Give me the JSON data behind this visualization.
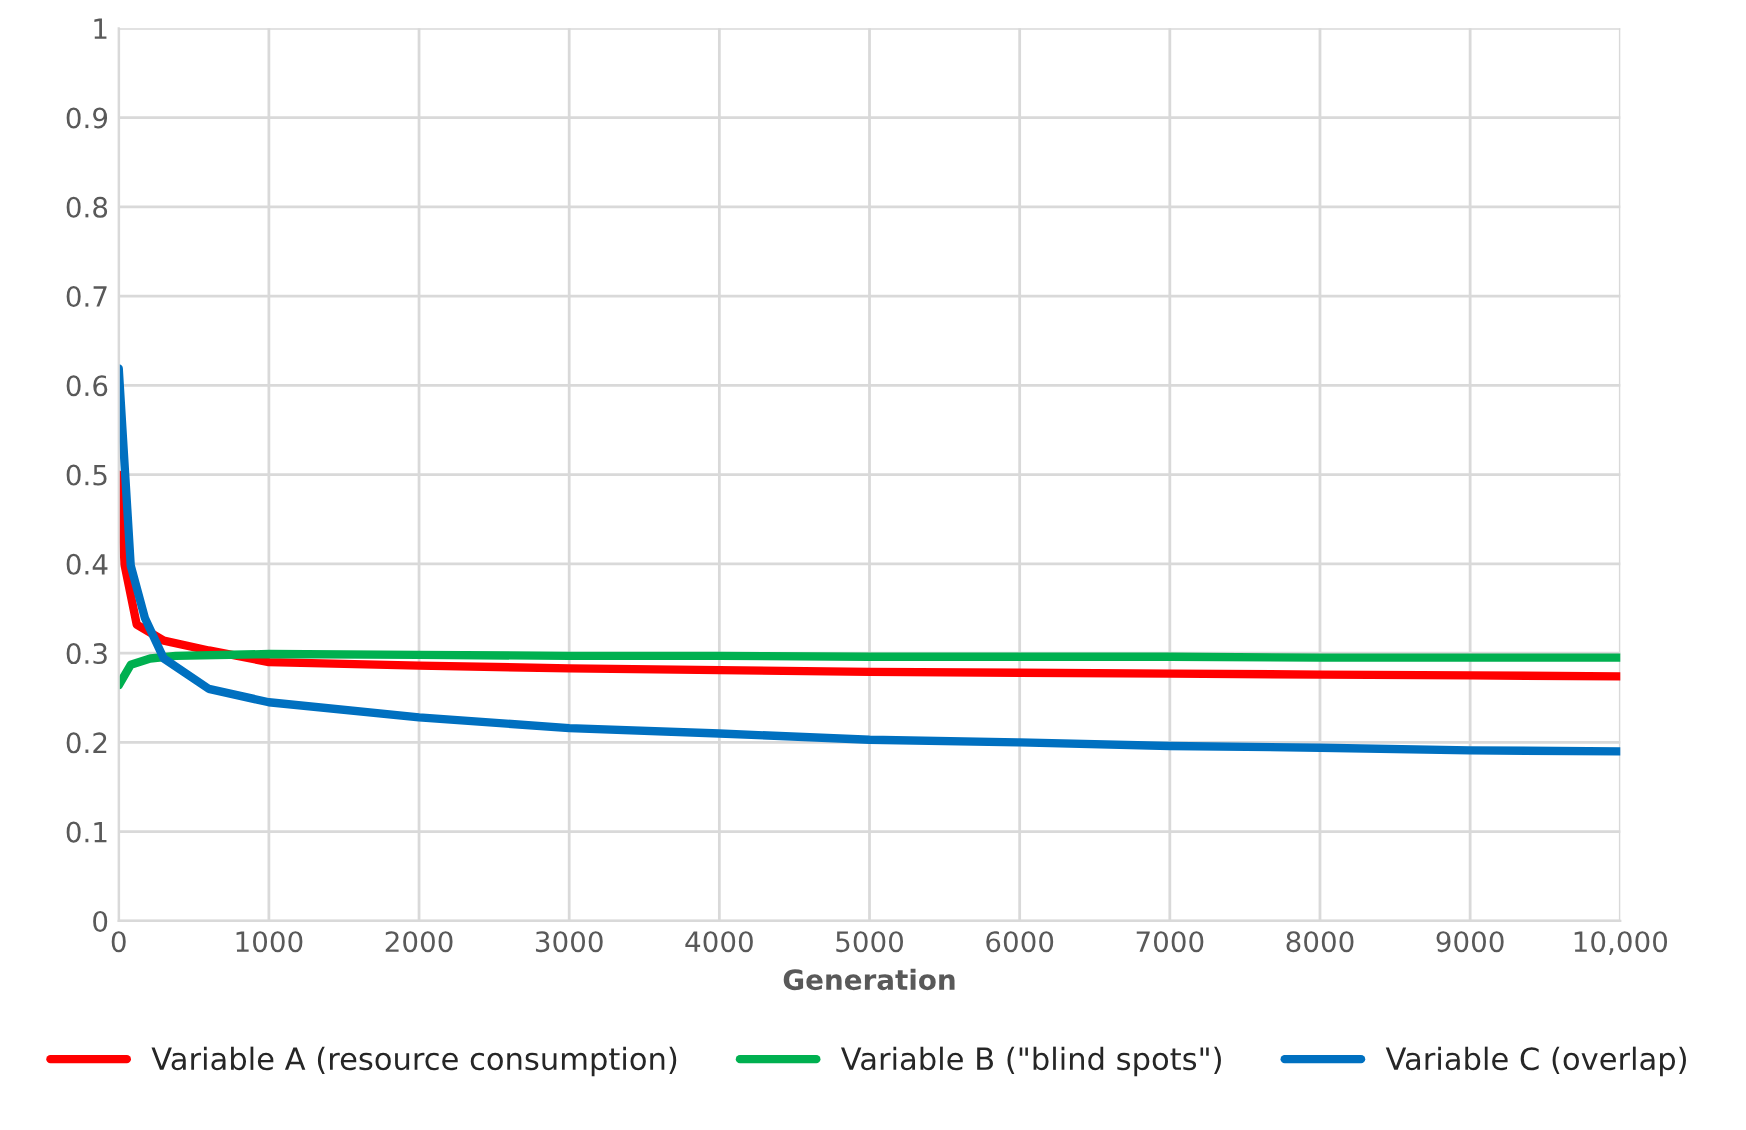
{
  "chart_data": {
    "type": "line",
    "xlabel": "Generation",
    "xlim": [
      0,
      10000
    ],
    "ylim": [
      0,
      1
    ],
    "xticks": [
      0,
      1000,
      2000,
      3000,
      4000,
      5000,
      6000,
      7000,
      8000,
      9000,
      {
        "value": 10000,
        "label": "10,000"
      }
    ],
    "yticks": [
      0,
      0.1,
      0.2,
      0.3,
      0.4,
      0.5,
      0.6,
      0.7,
      0.8,
      0.9,
      1
    ],
    "grid": true,
    "legend": "bottom",
    "marker": "none",
    "line_style": "solid",
    "series": [
      {
        "name": "Variable A (resource consumption)",
        "color": "#ff0000",
        "x": [
          0,
          40,
          120,
          300,
          600,
          1000,
          2000,
          3000,
          4000,
          5000,
          6000,
          7000,
          8000,
          9000,
          10000
        ],
        "values": [
          0.5,
          0.398,
          0.332,
          0.314,
          0.303,
          0.29,
          0.286,
          0.283,
          0.281,
          0.279,
          0.278,
          0.277,
          0.276,
          0.275,
          0.274
        ]
      },
      {
        "name": "Variable B (\"blind spots\")",
        "color": "#00b050",
        "x": [
          0,
          80,
          210,
          380,
          1000,
          2000,
          3000,
          4000,
          5000,
          6000,
          7000,
          8000,
          9000,
          10000
        ],
        "values": [
          0.264,
          0.287,
          0.294,
          0.297,
          0.299,
          0.298,
          0.297,
          0.297,
          0.296,
          0.296,
          0.296,
          0.295,
          0.295,
          0.295
        ]
      },
      {
        "name": "Variable C (overlap)",
        "color": "#0070c0",
        "x": [
          0,
          80,
          175,
          300,
          600,
          1000,
          2000,
          3000,
          4000,
          5000,
          6000,
          7000,
          8000,
          9000,
          10000
        ],
        "values": [
          0.619,
          0.398,
          0.339,
          0.294,
          0.26,
          0.245,
          0.228,
          0.216,
          0.21,
          0.203,
          0.2,
          0.196,
          0.194,
          0.191,
          0.19
        ]
      }
    ]
  }
}
